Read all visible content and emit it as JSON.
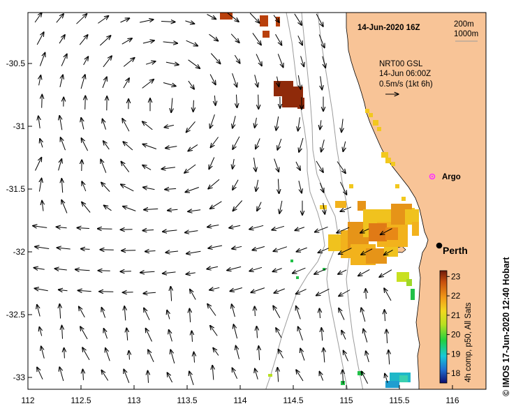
{
  "map": {
    "title": "14-Jun-2020 16Z",
    "isobaths": [
      "200m",
      "1000m"
    ],
    "current_product": {
      "name": "NRT00 GSL",
      "time": "14-Jun 06:00Z",
      "scale": "0.5m/s (1kt 6h)"
    },
    "places": [
      {
        "label": "Perth",
        "lon": 115.86,
        "lat": -31.95
      },
      {
        "label": "Argo",
        "lon": 115.78,
        "lat": -31.43
      }
    ],
    "extent": {
      "lon": [
        112,
        116.3
      ],
      "lat": [
        -33.1,
        -30.1
      ]
    }
  },
  "axes": {
    "x_ticks": [
      "112",
      "112.5",
      "113",
      "113.5",
      "114",
      "114.5",
      "115",
      "115.5",
      "116"
    ],
    "y_ticks": [
      "-30.5",
      "-31",
      "-31.5",
      "-32",
      "-32.5",
      "-33"
    ]
  },
  "colorbar": {
    "label": "4h comp, p50, All Sats",
    "ticks": [
      "23",
      "22",
      "21",
      "20",
      "19",
      "18"
    ],
    "range": [
      17.5,
      23.3
    ],
    "colors": [
      "#0d0d6e",
      "#1f6fd0",
      "#16c8d8",
      "#22d040",
      "#b8e020",
      "#f2d820",
      "#f29a18",
      "#c8500e",
      "#6e1a0a"
    ]
  },
  "credit": "© IMOS 17-Jun-2020 12:40 Hobart",
  "colors": {
    "land": "#f8c497",
    "isobath": "#9b9b9b",
    "arrow": "#000000",
    "argo": "#ff30ff"
  }
}
